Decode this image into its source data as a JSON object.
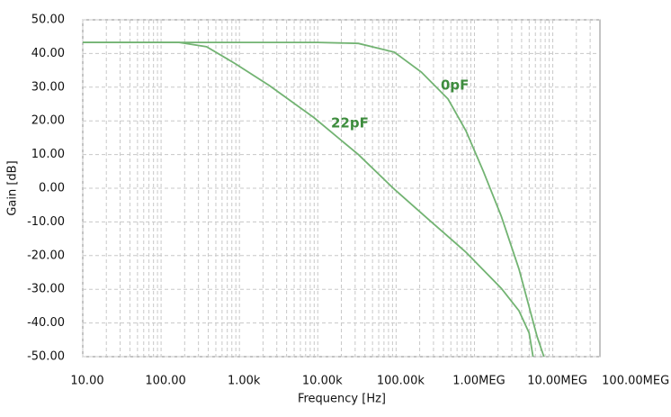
{
  "chart_data": {
    "type": "line",
    "x_scale": "log",
    "grid": true,
    "x_label": "Frequency [Hz]",
    "y_label": "Gain [dB]",
    "xlim": [
      10,
      40000000
    ],
    "ylim": [
      -50,
      50
    ],
    "xticks": [
      {
        "value": 10,
        "label": "10.00"
      },
      {
        "value": 100,
        "label": "100.00"
      },
      {
        "value": 1000,
        "label": "1.00k"
      },
      {
        "value": 10000,
        "label": "10.00k"
      },
      {
        "value": 100000,
        "label": "100.00k"
      },
      {
        "value": 1000000,
        "label": "1.00MEG"
      },
      {
        "value": 10000000,
        "label": "10.00MEG"
      },
      {
        "value": 100000000,
        "label": "100.00MEG"
      }
    ],
    "yticks": [
      {
        "value": 50,
        "label": "50.00"
      },
      {
        "value": 40,
        "label": "40.00"
      },
      {
        "value": 30,
        "label": "30.00"
      },
      {
        "value": 20,
        "label": "20.00"
      },
      {
        "value": 10,
        "label": "10.00"
      },
      {
        "value": 0,
        "label": "0.00"
      },
      {
        "value": -10,
        "label": "-10.00"
      },
      {
        "value": -20,
        "label": "-20.00"
      },
      {
        "value": -30,
        "label": "-30.00"
      },
      {
        "value": -40,
        "label": "-40.00"
      },
      {
        "value": -50,
        "label": "-50.00"
      }
    ],
    "series": [
      {
        "name": "0pF",
        "color": "#72b372",
        "label_color": "#3d8c3d",
        "x": [
          10,
          1000,
          10000,
          33000,
          95000,
          210000,
          460000,
          780000,
          1300000,
          2200000,
          3700000,
          6300000,
          7700000
        ],
        "values": [
          43.3,
          43.3,
          43.3,
          43,
          40.4,
          34.5,
          26.5,
          17,
          5,
          -8.3,
          -24,
          -44,
          -50
        ]
      },
      {
        "name": "22pF",
        "color": "#72b372",
        "label_color": "#3d8c3d",
        "x": [
          10,
          170,
          380,
          880,
          2400,
          8900,
          33000,
          95000,
          270000,
          780000,
          2200000,
          3700000,
          5000000,
          5600000
        ],
        "values": [
          43.3,
          43.3,
          42,
          37,
          30.5,
          21,
          10,
          -0.3,
          -9.6,
          -19,
          -29.7,
          -36.4,
          -43,
          -50
        ]
      }
    ]
  }
}
